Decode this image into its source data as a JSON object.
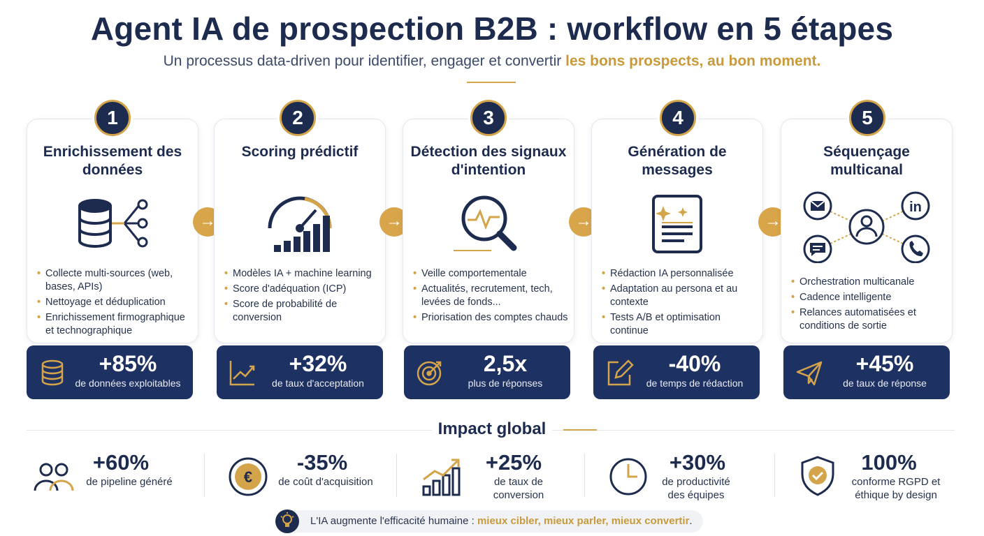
{
  "header": {
    "title": "Agent IA de prospection B2B : workflow en 5 étapes",
    "subtitle_plain": "Un processus data-driven pour identifier, engager et convertir ",
    "subtitle_highlight": "les bons prospects, au bon moment."
  },
  "steps": [
    {
      "number": "1",
      "title": "Enrichissement des données",
      "icon": "database-network-icon",
      "bullets": [
        "Collecte multi-sources (web, bases, APIs)",
        "Nettoyage et déduplication",
        "Enrichissement firmographique et technographique"
      ],
      "stat_value": "+85%",
      "stat_label": "de données exploitables",
      "stat_icon": "database-icon"
    },
    {
      "number": "2",
      "title": "Scoring prédictif",
      "icon": "gauge-chart-icon",
      "bullets": [
        "Modèles IA + machine learning",
        "Score d'adéquation (ICP)",
        "Score de probabilité de conversion"
      ],
      "stat_value": "+32%",
      "stat_label": "de taux d'acceptation",
      "stat_icon": "trend-chart-icon"
    },
    {
      "number": "3",
      "title": "Détection des signaux d'intention",
      "icon": "magnifier-pulse-icon",
      "bullets": [
        "Veille comportementale",
        "Actualités, recrutement, tech, levées de fonds...",
        "Priorisation des comptes chauds"
      ],
      "stat_value": "2,5x",
      "stat_label": "plus de réponses",
      "stat_icon": "target-icon"
    },
    {
      "number": "4",
      "title": "Génération de messages",
      "icon": "document-sparkle-icon",
      "bullets": [
        "Rédaction IA personnalisée",
        "Adaptation au persona et au contexte",
        "Tests A/B et optimisation continue"
      ],
      "stat_value": "-40%",
      "stat_label": "de temps de rédaction",
      "stat_icon": "edit-icon"
    },
    {
      "number": "5",
      "title": "Séquençage multicanal",
      "icon": "multichannel-network-icon",
      "bullets": [
        "Orchestration multicanale",
        "Cadence intelligente",
        "Relances automatisées et conditions de sortie"
      ],
      "stat_value": "+45%",
      "stat_label": "de taux de réponse",
      "stat_icon": "paper-plane-icon"
    }
  ],
  "impact": {
    "title": "Impact global",
    "items": [
      {
        "value": "+60%",
        "label": "de pipeline généré",
        "icon": "users-icon"
      },
      {
        "value": "-35%",
        "label": "de coût d'acquisition",
        "icon": "euro-coin-icon"
      },
      {
        "value": "+25%",
        "label": "de taux de conversion",
        "icon": "growth-chart-icon"
      },
      {
        "value": "+30%",
        "label": "de productivité des équipes",
        "icon": "clock-icon"
      },
      {
        "value": "100%",
        "label": "conforme RGPD et éthique by design",
        "icon": "shield-check-icon"
      }
    ]
  },
  "banner": {
    "plain": "L'IA augmente l'efficacité humaine : ",
    "highlight": "mieux cibler, mieux parler, mieux convertir",
    "end": ".",
    "icon": "lightbulb-icon"
  },
  "colors": {
    "navy": "#1d2b4f",
    "stat_box": "#1e3163",
    "gold": "#d4a44a"
  }
}
